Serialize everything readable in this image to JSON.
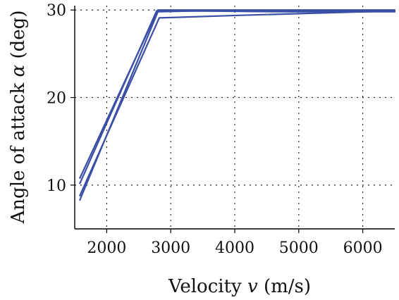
{
  "chart_data": {
    "type": "line",
    "xlabel": "Velocity",
    "xlabel_var": "v",
    "xlabel_unit": "(m/s)",
    "ylabel": "Angle of attack",
    "ylabel_var": "α",
    "ylabel_unit": "(deg)",
    "xlim": [
      1500,
      6500
    ],
    "ylim": [
      5,
      30.5
    ],
    "xticks": [
      2000,
      3000,
      4000,
      5000,
      6000
    ],
    "xtick_labels": [
      "2000",
      "3000",
      "4000",
      "5000",
      "6000"
    ],
    "yticks": [
      10,
      20,
      30
    ],
    "ytick_labels": [
      "10",
      "20",
      "30"
    ],
    "grid": true,
    "color": "#3a4fa5",
    "series": [
      {
        "x": [
          1580,
          2800,
          6500
        ],
        "y": [
          10.8,
          30.0,
          30.0
        ]
      },
      {
        "x": [
          1580,
          2780,
          3700,
          6500
        ],
        "y": [
          10.2,
          29.9,
          29.9,
          29.9
        ]
      },
      {
        "x": [
          1580,
          2820,
          4100,
          6500
        ],
        "y": [
          8.8,
          29.1,
          29.4,
          29.9
        ]
      },
      {
        "x": [
          1580,
          2800,
          3400,
          4800,
          6500
        ],
        "y": [
          8.3,
          29.8,
          29.9,
          29.8,
          29.8
        ]
      }
    ]
  }
}
